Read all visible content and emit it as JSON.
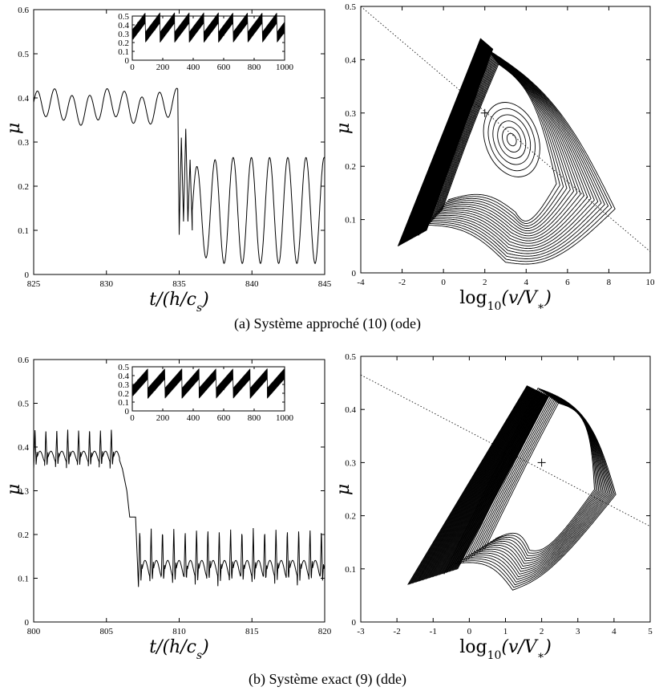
{
  "captions": {
    "a": "(a) Système approché (10) (ode)",
    "b": "(b) Système exact (9) (dde)"
  },
  "chart_data": [
    {
      "id": "a-left",
      "type": "line",
      "xlabel": "t/(h/c_s)",
      "ylabel": "μ",
      "xlim": [
        825,
        845
      ],
      "ylim": [
        0,
        0.6
      ],
      "xticks": [
        "825",
        "830",
        "835",
        "840",
        "845"
      ],
      "yticks": [
        "0",
        "0.1",
        "0.2",
        "0.3",
        "0.4",
        "0.5",
        "0.6"
      ],
      "series": [
        {
          "segments": [
            {
              "t0": 825,
              "t1": 834.9,
              "mean": 0.38,
              "amp": 0.032,
              "period": 1.2,
              "phase": 0.3
            },
            {
              "t0": 835,
              "t1": 835.9,
              "transient": [
                [
                  835.0,
                  0.09
                ],
                [
                  835.15,
                  0.31
                ],
                [
                  835.3,
                  0.12
                ],
                [
                  835.45,
                  0.33
                ],
                [
                  835.6,
                  0.12
                ],
                [
                  835.75,
                  0.26
                ],
                [
                  835.9,
                  0.1
                ]
              ]
            },
            {
              "t0": 835.9,
              "t1": 845,
              "mean": 0.145,
              "amp": 0.12,
              "period": 1.25,
              "phase": 0.0
            }
          ]
        }
      ],
      "inset": {
        "xlim": [
          0,
          1000
        ],
        "ylim": [
          0,
          0.5
        ],
        "xticks": [
          "0",
          "200",
          "400",
          "600",
          "800",
          "1000"
        ],
        "yticks": [
          "0",
          "0.1",
          "0.2",
          "0.3",
          "0.4",
          "0.5"
        ],
        "sawtooth_period": 96,
        "low": 0.26,
        "high": 0.48
      }
    },
    {
      "id": "a-right",
      "type": "line",
      "xlabel": "log10(v/V*)",
      "ylabel": "μ",
      "xlim": [
        -4,
        10
      ],
      "ylim": [
        0,
        0.5
      ],
      "xticks": [
        "-4",
        "-2",
        "0",
        "2",
        "4",
        "6",
        "8",
        "10"
      ],
      "yticks": [
        "0",
        "0.1",
        "0.2",
        "0.3",
        "0.4",
        "0.5"
      ],
      "dotted_line": [
        [
          -4,
          0.5
        ],
        [
          10,
          0.04
        ]
      ],
      "fixed_point": [
        2,
        0.3
      ],
      "attractor": {
        "left_edge_bottom": [
          -2.2,
          0.05
        ],
        "left_edge_top": [
          1.8,
          0.44
        ],
        "loops": 18,
        "centre": [
          3.3,
          0.25
        ],
        "right_x": 8.3,
        "bottom_y": 0.02,
        "top_y": 0.42
      }
    },
    {
      "id": "b-left",
      "type": "line",
      "xlabel": "t/(h/c_s)",
      "ylabel": "μ",
      "xlim": [
        800,
        820
      ],
      "ylim": [
        0,
        0.6
      ],
      "xticks": [
        "800",
        "805",
        "810",
        "815",
        "820"
      ],
      "yticks": [
        "0",
        "0.1",
        "0.2",
        "0.3",
        "0.4",
        "0.5",
        "0.6"
      ],
      "series": [
        {
          "segments": [
            {
              "t0": 800,
              "t1": 805.9,
              "low": 0.35,
              "high": 0.44,
              "period": 0.75,
              "spiky": true
            },
            {
              "t0": 805.9,
              "t1": 806.9,
              "plateau": [
                [
                  805.9,
                  0.37
                ],
                [
                  806.1,
                  0.35
                ],
                [
                  806.4,
                  0.3
                ],
                [
                  806.6,
                  0.24
                ],
                [
                  806.8,
                  0.24
                ],
                [
                  807.0,
                  0.24
                ]
              ]
            },
            {
              "t0": 807.2,
              "t1": 820,
              "low": 0.08,
              "high": 0.215,
              "period": 0.78,
              "spiky": true
            }
          ]
        }
      ],
      "inset": {
        "xlim": [
          0,
          1000
        ],
        "ylim": [
          0,
          0.5
        ],
        "xticks": [
          "0",
          "200",
          "400",
          "600",
          "800",
          "1000"
        ],
        "yticks": [
          "0",
          "0.1",
          "0.2",
          "0.3",
          "0.4",
          "0.5"
        ],
        "sawtooth_period": 112,
        "low": 0.2,
        "high": 0.42
      }
    },
    {
      "id": "b-right",
      "type": "line",
      "xlabel": "log10(v/V*)",
      "ylabel": "μ",
      "xlim": [
        -3,
        5
      ],
      "ylim": [
        0,
        0.5
      ],
      "xticks": [
        "-3",
        "-2",
        "-1",
        "0",
        "1",
        "2",
        "3",
        "4",
        "5"
      ],
      "yticks": [
        "0",
        "0.1",
        "0.2",
        "0.3",
        "0.4",
        "0.5"
      ],
      "dotted_line": [
        [
          -3,
          0.465
        ],
        [
          5,
          0.18
        ]
      ],
      "fixed_point": [
        2,
        0.3
      ],
      "attractor": {
        "left_edge_bottom": [
          -1.7,
          0.07
        ],
        "left_edge_top": [
          1.6,
          0.445
        ],
        "loops": 16,
        "right_x": 4.05,
        "bottom_y": 0.06,
        "top_y": 0.44
      }
    }
  ]
}
